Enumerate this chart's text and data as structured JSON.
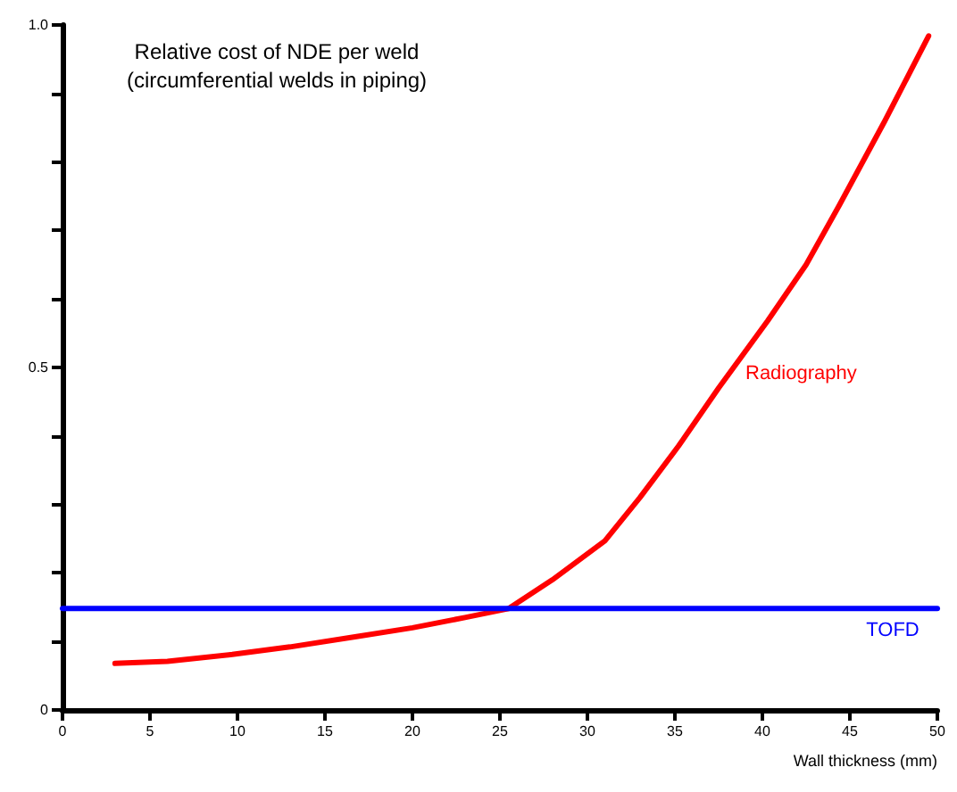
{
  "chart_data": {
    "type": "line",
    "title": "Relative cost of NDE per weld",
    "subtitle": "(circumferential welds in piping)",
    "xlabel": "Wall thickness (mm)",
    "xlim": [
      0,
      50
    ],
    "xticks": [
      0,
      5,
      10,
      15,
      20,
      25,
      30,
      35,
      40,
      45,
      50
    ],
    "ylim": [
      0,
      1
    ],
    "yticks": [
      0,
      {
        "value": 0.1,
        "label": null
      },
      {
        "value": 0.2,
        "label": null
      },
      {
        "value": 0.3,
        "label": null
      },
      {
        "value": 0.4,
        "label": null
      },
      0.5,
      {
        "value": 0.6,
        "label": null
      },
      {
        "value": 0.7,
        "label": null
      },
      {
        "value": 0.8,
        "label": null
      },
      {
        "value": 0.9,
        "label": null
      },
      {
        "value": 1,
        "label": "1.0"
      }
    ],
    "grid": false,
    "marker": "none",
    "line_style": "solid",
    "series": [
      {
        "name": "Radiography",
        "color": "#ff0000",
        "x": [
          3,
          6,
          9.7,
          13,
          16.8,
          20,
          23,
          25.5,
          28,
          31,
          33,
          35.2,
          37.5,
          40.3,
          42.5,
          44.4,
          47,
          49.5
        ],
        "values": [
          0.068,
          0.071,
          0.081,
          0.092,
          0.107,
          0.12,
          0.135,
          0.148,
          0.19,
          0.247,
          0.31,
          0.385,
          0.47,
          0.568,
          0.65,
          0.737,
          0.86,
          0.984
        ]
      },
      {
        "name": "TOFD",
        "color": "#0000ff",
        "x": [
          0,
          50
        ],
        "values": [
          0.148,
          0.148
        ]
      }
    ]
  }
}
